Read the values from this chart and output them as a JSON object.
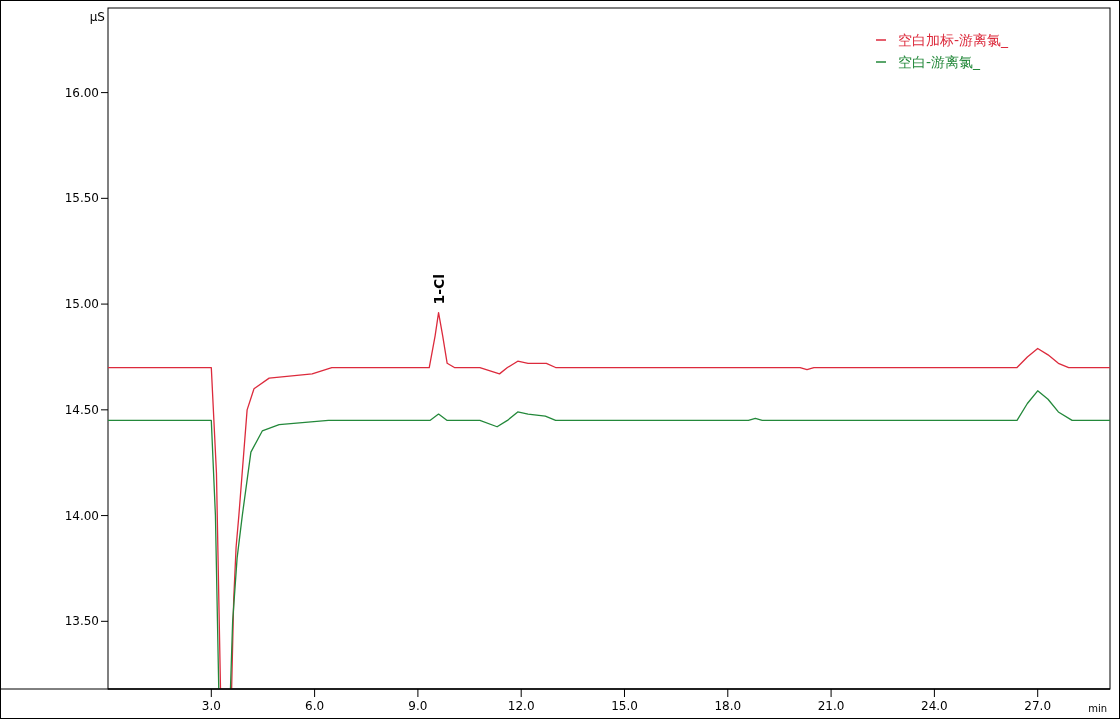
{
  "chart_data": {
    "type": "line",
    "xlabel": "min",
    "ylabel": "µS",
    "xlim": [
      0,
      29.1
    ],
    "ylim": [
      13.18,
      16.4
    ],
    "xticks": [
      {
        "value": 3,
        "label": "3.0"
      },
      {
        "value": 6,
        "label": "6.0"
      },
      {
        "value": 9,
        "label": "9.0"
      },
      {
        "value": 12,
        "label": "12.0"
      },
      {
        "value": 15,
        "label": "15.0"
      },
      {
        "value": 18,
        "label": "18.0"
      },
      {
        "value": 21,
        "label": "21.0"
      },
      {
        "value": 24,
        "label": "24.0"
      },
      {
        "value": 27,
        "label": "27.0"
      }
    ],
    "yticks": [
      {
        "value": 13.5,
        "label": "13.50"
      },
      {
        "value": 14,
        "label": "14.00"
      },
      {
        "value": 14.5,
        "label": "14.50"
      },
      {
        "value": 15,
        "label": "15.00"
      },
      {
        "value": 15.5,
        "label": "15.50"
      },
      {
        "value": 16,
        "label": "16.00"
      }
    ],
    "grid": false,
    "legend": "top right",
    "line_style": "solid",
    "marker": "none",
    "annotations": [
      {
        "text": "1-Cl",
        "x": 9.6,
        "y": 14.96
      }
    ],
    "series": [
      {
        "name": "空白加标-游离氯_",
        "color": "#dc2a3c",
        "x": [
          0,
          3.0,
          3.15,
          3.3,
          3.55,
          3.65,
          3.72,
          3.8,
          4.04,
          4.24,
          4.68,
          5.93,
          6.5,
          9.33,
          9.5,
          9.6,
          9.72,
          9.85,
          10.06,
          10.8,
          11.37,
          11.6,
          11.9,
          12.2,
          12.73,
          13.0,
          20.1,
          20.3,
          20.5,
          26.4,
          26.7,
          27.0,
          27.3,
          27.6,
          27.9,
          29.1
        ],
        "values": [
          14.7,
          14.7,
          14.2,
          null,
          null,
          13.6,
          13.85,
          14.0,
          14.5,
          14.6,
          14.65,
          14.67,
          14.7,
          14.7,
          14.85,
          14.96,
          14.85,
          14.72,
          14.7,
          14.7,
          14.67,
          14.7,
          14.73,
          14.72,
          14.72,
          14.7,
          14.7,
          14.69,
          14.7,
          14.7,
          14.75,
          14.79,
          14.76,
          14.72,
          14.7,
          14.7
        ]
      },
      {
        "name": "空白-游离氯_",
        "color": "#23883a",
        "x": [
          0,
          3.0,
          3.12,
          3.25,
          3.5,
          3.62,
          3.75,
          3.9,
          4.15,
          4.48,
          4.97,
          6.4,
          9.35,
          9.6,
          9.85,
          10.8,
          11.3,
          11.6,
          11.9,
          12.2,
          12.7,
          13.0,
          18.6,
          18.8,
          19.0,
          26.4,
          26.7,
          27.0,
          27.3,
          27.6,
          28.0,
          29.1
        ],
        "values": [
          14.45,
          14.45,
          14.0,
          null,
          null,
          13.5,
          13.8,
          14.0,
          14.3,
          14.4,
          14.43,
          14.45,
          14.45,
          14.48,
          14.45,
          14.45,
          14.42,
          14.45,
          14.49,
          14.48,
          14.47,
          14.45,
          14.45,
          14.46,
          14.45,
          14.45,
          14.53,
          14.59,
          14.55,
          14.49,
          14.45,
          14.45
        ]
      }
    ]
  }
}
